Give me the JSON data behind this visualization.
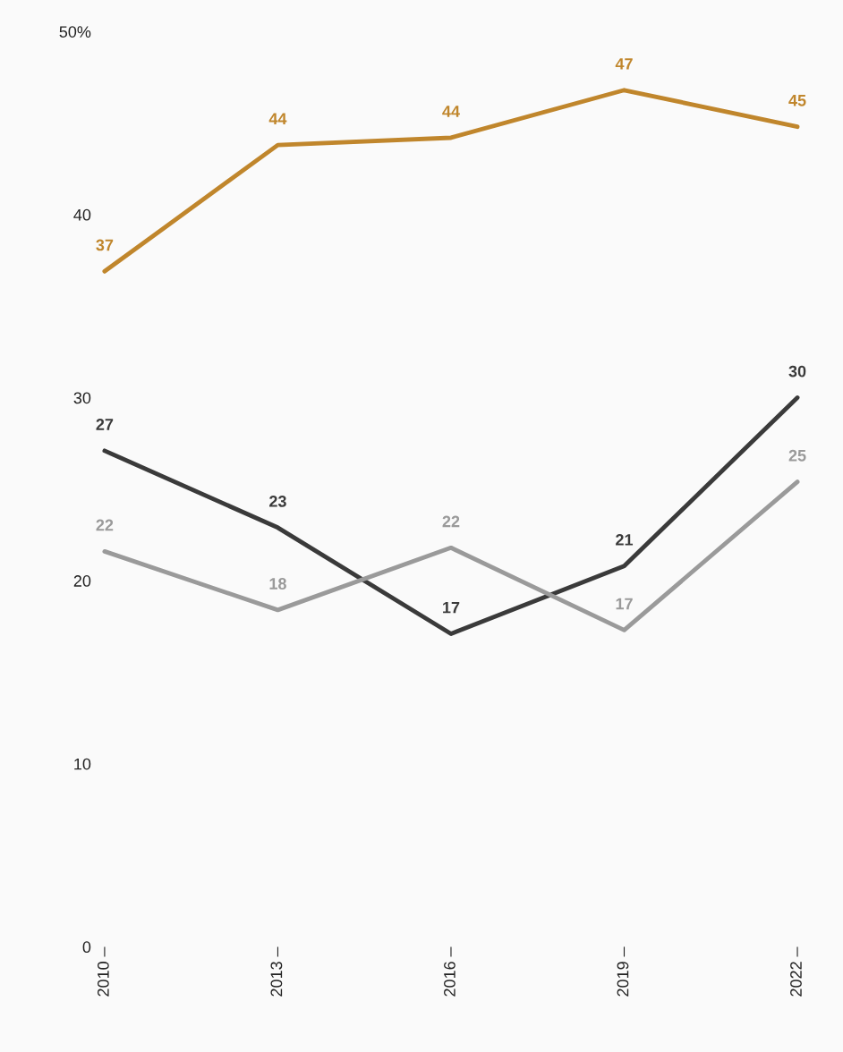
{
  "chart_data": {
    "type": "line",
    "categories": [
      "2010",
      "2013",
      "2016",
      "2019",
      "2022"
    ],
    "series": [
      {
        "color": "#c0862c",
        "values": [
          36.9,
          43.8,
          44.2,
          46.8,
          44.8
        ],
        "value_labels": [
          "37",
          "44",
          "44",
          "47",
          "45"
        ]
      },
      {
        "color": "#3a3a3a",
        "values": [
          27.1,
          22.9,
          17.1,
          20.8,
          30.0
        ],
        "value_labels": [
          "27",
          "23",
          "17",
          "21",
          "30"
        ]
      },
      {
        "color": "#9a9a9a",
        "values": [
          21.6,
          18.4,
          21.8,
          17.3,
          25.4
        ],
        "value_labels": [
          "22",
          "18",
          "22",
          "17",
          "25"
        ]
      }
    ],
    "ylim": [
      0,
      50
    ],
    "yticks": [
      0,
      10,
      20,
      30,
      40,
      {
        "value": 50,
        "label": "50%"
      }
    ],
    "grid": false,
    "legend": false,
    "marker": "none",
    "line_style": "solid"
  }
}
